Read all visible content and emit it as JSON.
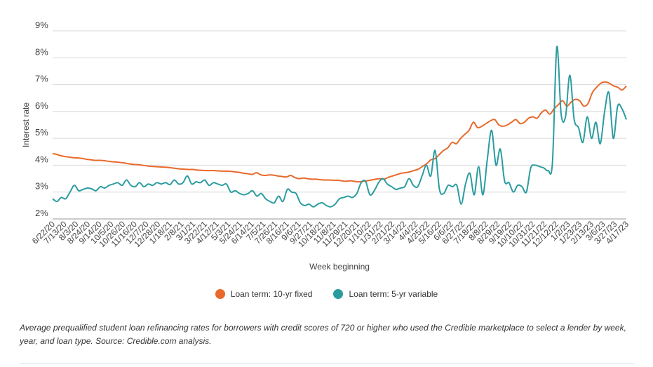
{
  "chart_data": {
    "type": "line",
    "xlabel": "Week beginning",
    "ylabel": "Interest rate",
    "ylim": [
      2,
      9
    ],
    "y_ticks": [
      {
        "value": 2,
        "label": "2%"
      },
      {
        "value": 3,
        "label": "3%"
      },
      {
        "value": 4,
        "label": "4%"
      },
      {
        "value": 5,
        "label": "5%"
      },
      {
        "value": 6,
        "label": "6%"
      },
      {
        "value": 7,
        "label": "7%"
      },
      {
        "value": 8,
        "label": "8%"
      },
      {
        "value": 9,
        "label": "9%"
      }
    ],
    "grid": true,
    "legend_position": "bottom",
    "x_tick_labels": [
      "6/22/20",
      "7/13/20",
      "8/3/20",
      "8/24/20",
      "9/14/20",
      "10/5/20",
      "10/26/20",
      "11/16/20",
      "12/7/20",
      "12/28/20",
      "1/18/21",
      "2/8/21",
      "3/1/21",
      "3/22/21",
      "4/12/21",
      "5/3/21",
      "5/24/21",
      "6/14/21",
      "7/5/21",
      "7/26/21",
      "8/16/21",
      "9/6/21",
      "9/27/21",
      "10/18/21",
      "11/8/21",
      "11/29/21",
      "12/20/21",
      "1/10/22",
      "1/31/22",
      "2/21/22",
      "3/14/22",
      "4/4/22",
      "4/25/22",
      "5/16/22",
      "6/6/22",
      "6/27/22",
      "7/18/22",
      "8/8/22",
      "8/29/22",
      "9/19/22",
      "10/10/22",
      "10/31/22",
      "11/21/22",
      "12/12/22",
      "1/2/23",
      "1/23/23",
      "2/13/23",
      "3/6/23",
      "3/27/23",
      "4/17/23"
    ],
    "series": [
      {
        "name": "Loan term: 10-yr fixed",
        "color": "#e8692a",
        "values": [
          4.43,
          4.4,
          4.35,
          4.32,
          4.3,
          4.28,
          4.27,
          4.25,
          4.22,
          4.2,
          4.18,
          4.18,
          4.17,
          4.15,
          4.13,
          4.12,
          4.1,
          4.08,
          4.05,
          4.03,
          4.02,
          4.0,
          3.98,
          3.96,
          3.95,
          3.94,
          3.93,
          3.92,
          3.9,
          3.88,
          3.86,
          3.85,
          3.84,
          3.84,
          3.82,
          3.81,
          3.8,
          3.8,
          3.8,
          3.79,
          3.78,
          3.78,
          3.77,
          3.75,
          3.73,
          3.7,
          3.68,
          3.66,
          3.72,
          3.64,
          3.62,
          3.64,
          3.63,
          3.6,
          3.58,
          3.56,
          3.62,
          3.54,
          3.5,
          3.52,
          3.5,
          3.48,
          3.48,
          3.46,
          3.45,
          3.45,
          3.44,
          3.44,
          3.42,
          3.4,
          3.42,
          3.4,
          3.38,
          3.4,
          3.42,
          3.45,
          3.48,
          3.5,
          3.48,
          3.55,
          3.6,
          3.65,
          3.7,
          3.72,
          3.75,
          3.8,
          3.85,
          3.95,
          4.05,
          4.2,
          4.25,
          4.4,
          4.55,
          4.65,
          4.85,
          4.8,
          5.0,
          5.15,
          5.3,
          5.6,
          5.4,
          5.45,
          5.55,
          5.65,
          5.7,
          5.5,
          5.45,
          5.5,
          5.6,
          5.7,
          5.55,
          5.6,
          5.75,
          5.8,
          5.75,
          5.95,
          6.05,
          5.9,
          6.1,
          6.25,
          6.4,
          6.2,
          6.35,
          6.45,
          6.4,
          6.2,
          6.3,
          6.7,
          6.9,
          7.05,
          7.1,
          7.05,
          6.95,
          6.9,
          6.8,
          6.95
        ]
      },
      {
        "name": "Loan term: 5-yr variable",
        "color": "#2a9ca0",
        "values": [
          2.75,
          2.65,
          2.8,
          2.75,
          3.0,
          3.25,
          3.05,
          3.1,
          3.15,
          3.12,
          3.05,
          3.2,
          3.15,
          3.25,
          3.3,
          3.35,
          3.25,
          3.45,
          3.25,
          3.2,
          3.35,
          3.2,
          3.3,
          3.25,
          3.35,
          3.3,
          3.35,
          3.28,
          3.45,
          3.3,
          3.35,
          3.6,
          3.3,
          3.38,
          3.35,
          3.45,
          3.25,
          3.35,
          3.3,
          3.25,
          3.3,
          3.0,
          3.05,
          2.95,
          2.9,
          2.95,
          3.05,
          2.85,
          2.95,
          2.75,
          2.65,
          2.6,
          2.85,
          2.65,
          3.1,
          3.0,
          2.95,
          2.6,
          2.5,
          2.55,
          2.45,
          2.55,
          2.6,
          2.5,
          2.45,
          2.55,
          2.75,
          2.8,
          2.85,
          2.8,
          2.95,
          3.35,
          3.4,
          2.9,
          3.05,
          3.35,
          3.5,
          3.3,
          3.2,
          3.1,
          3.15,
          3.2,
          3.5,
          3.25,
          3.2,
          3.6,
          4.0,
          3.6,
          4.55,
          3.1,
          2.95,
          3.25,
          3.2,
          3.25,
          2.55,
          3.3,
          3.7,
          2.9,
          3.95,
          2.9,
          4.2,
          5.3,
          4.0,
          4.6,
          3.4,
          3.35,
          3.0,
          3.25,
          3.2,
          3.0,
          3.9,
          4.0,
          3.95,
          3.9,
          3.8,
          4.1,
          8.4,
          5.9,
          5.8,
          7.35,
          5.7,
          5.4,
          4.85,
          5.8,
          5.0,
          5.6,
          4.8,
          6.0,
          6.7,
          5.0,
          6.2,
          6.1,
          5.7
        ]
      }
    ]
  },
  "legend": {
    "items": [
      {
        "label": "Loan term: 10-yr fixed",
        "color": "#e8692a"
      },
      {
        "label": "Loan term: 5-yr variable",
        "color": "#2a9ca0"
      }
    ]
  },
  "caption": "Average prequalified student loan refinancing rates for borrowers with credit scores of 720 or higher who used the Credible marketplace to select a lender by week, year, and loan type. Source: Credible.com analysis."
}
